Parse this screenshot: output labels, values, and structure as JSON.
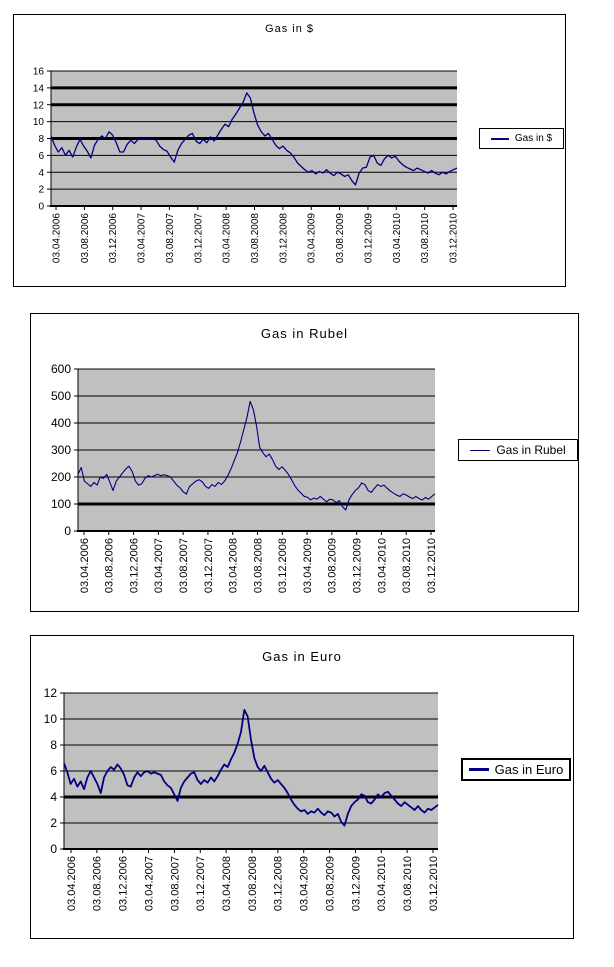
{
  "page": {
    "background": "#ffffff",
    "description_colors": {
      "plot_background": "#c0c0c0",
      "gridline": "#000000",
      "series_line": "#000080"
    }
  },
  "chart_data": [
    {
      "type": "line",
      "title": "Gas in $",
      "legend_label": "Gas in $",
      "legend_position": "right",
      "line_color": "#000080",
      "plot_bg": "#c0c0c0",
      "grid_color": "#000000",
      "grid": true,
      "ylim": [
        0,
        16
      ],
      "yticks": [
        0,
        2,
        4,
        6,
        8,
        10,
        12,
        14,
        16
      ],
      "thick_gridlines": [
        8,
        12,
        14
      ],
      "x_labels": [
        "03.04.2006",
        "03.08.2006",
        "03.12.2006",
        "03.04.2007",
        "03.08.2007",
        "03.12.2007",
        "03.04.2008",
        "03.08.2008",
        "03.12.2008",
        "03.04.2009",
        "03.08.2009",
        "03.12.2009",
        "03.04.2010",
        "03.08.2010",
        "03.12.2010"
      ],
      "values": [
        8.3,
        7.2,
        6.4,
        6.9,
        6.0,
        6.6,
        5.8,
        7.0,
        7.9,
        7.1,
        6.5,
        5.7,
        7.2,
        7.9,
        8.3,
        8.0,
        8.8,
        8.4,
        7.5,
        6.4,
        6.4,
        7.3,
        7.8,
        7.4,
        7.9,
        8.0,
        7.9,
        8.0,
        8.0,
        7.8,
        7.1,
        6.7,
        6.5,
        5.8,
        5.2,
        6.6,
        7.4,
        7.9,
        8.4,
        8.6,
        7.7,
        7.4,
        7.9,
        7.5,
        8.2,
        7.7,
        8.4,
        9.1,
        9.7,
        9.4,
        10.3,
        10.9,
        11.6,
        12.3,
        13.4,
        12.8,
        11.0,
        9.6,
        8.8,
        8.3,
        8.6,
        7.9,
        7.2,
        6.8,
        7.1,
        6.6,
        6.3,
        5.8,
        5.1,
        4.7,
        4.3,
        4.0,
        4.2,
        3.8,
        4.1,
        3.9,
        4.3,
        3.9,
        3.6,
        4.0,
        3.8,
        3.5,
        3.7,
        3.0,
        2.5,
        3.9,
        4.5,
        4.6,
        5.8,
        6.0,
        5.1,
        4.8,
        5.6,
        6.0,
        5.7,
        5.9,
        5.3,
        4.9,
        4.6,
        4.4,
        4.2,
        4.5,
        4.3,
        4.1,
        3.9,
        4.2,
        3.9,
        3.7,
        4.0,
        3.8,
        4.1,
        4.3,
        4.5
      ]
    },
    {
      "type": "line",
      "title": "Gas in Rubel",
      "legend_label": "Gas in Rubel",
      "legend_position": "right",
      "line_color": "#000080",
      "plot_bg": "#c0c0c0",
      "grid_color": "#000000",
      "grid": true,
      "ylim": [
        0,
        600
      ],
      "yticks": [
        0,
        100,
        200,
        300,
        400,
        500,
        600
      ],
      "thick_gridlines": [
        100
      ],
      "x_labels": [
        "03.04.2006",
        "03.08.2006",
        "03.12.2006",
        "03.04.2007",
        "03.08.2007",
        "03.12.2007",
        "03.04.2008",
        "03.08.2008",
        "03.12.2008",
        "03.04.2009",
        "03.08.2009",
        "03.12.2009",
        "03.04.2010",
        "03.08.2010",
        "03.12.2010"
      ],
      "values": [
        210,
        235,
        185,
        175,
        165,
        180,
        170,
        200,
        195,
        210,
        180,
        150,
        185,
        200,
        215,
        230,
        240,
        220,
        185,
        170,
        175,
        195,
        205,
        200,
        205,
        210,
        205,
        208,
        205,
        200,
        185,
        170,
        160,
        145,
        137,
        165,
        175,
        185,
        190,
        182,
        165,
        158,
        172,
        165,
        180,
        172,
        185,
        205,
        230,
        260,
        290,
        330,
        375,
        420,
        480,
        450,
        390,
        310,
        290,
        275,
        285,
        265,
        240,
        228,
        238,
        225,
        210,
        190,
        168,
        152,
        140,
        128,
        125,
        115,
        122,
        118,
        128,
        118,
        108,
        118,
        115,
        105,
        112,
        90,
        78,
        115,
        135,
        150,
        160,
        178,
        172,
        150,
        143,
        158,
        172,
        165,
        170,
        158,
        148,
        140,
        133,
        128,
        138,
        133,
        126,
        120,
        128,
        120,
        115,
        124,
        118,
        128,
        138
      ]
    },
    {
      "type": "line",
      "title": "Gas in Euro",
      "legend_label": "Gas in Euro",
      "legend_position": "right",
      "line_color": "#000080",
      "plot_bg": "#c0c0c0",
      "grid_color": "#000000",
      "grid": true,
      "ylim": [
        0,
        12
      ],
      "yticks": [
        0,
        2,
        4,
        6,
        8,
        10,
        12
      ],
      "thick_gridlines": [
        4
      ],
      "x_labels": [
        "03.04.2006",
        "03.08.2006",
        "03.12.2006",
        "03.04.2007",
        "03.08.2007",
        "03.12.2007",
        "03.04.2008",
        "03.08.2008",
        "03.12.2008",
        "03.04.2009",
        "03.08.2009",
        "03.12.2009",
        "03.04.2010",
        "03.08.2010",
        "03.12.2010"
      ],
      "values": [
        6.6,
        5.9,
        5.0,
        5.4,
        4.8,
        5.2,
        4.6,
        5.5,
        6.0,
        5.5,
        5.0,
        4.3,
        5.5,
        6.0,
        6.3,
        6.1,
        6.5,
        6.2,
        5.7,
        4.9,
        4.8,
        5.5,
        5.9,
        5.6,
        5.9,
        6.0,
        5.8,
        5.9,
        5.8,
        5.7,
        5.2,
        4.9,
        4.7,
        4.2,
        3.7,
        4.7,
        5.2,
        5.5,
        5.8,
        5.9,
        5.3,
        5.0,
        5.3,
        5.1,
        5.5,
        5.2,
        5.6,
        6.1,
        6.5,
        6.3,
        6.9,
        7.4,
        8.1,
        9.0,
        10.7,
        10.2,
        8.4,
        7.0,
        6.3,
        6.0,
        6.4,
        5.9,
        5.4,
        5.1,
        5.3,
        5.0,
        4.7,
        4.3,
        3.8,
        3.4,
        3.1,
        2.9,
        3.0,
        2.7,
        2.9,
        2.8,
        3.1,
        2.8,
        2.6,
        2.9,
        2.8,
        2.5,
        2.7,
        2.1,
        1.8,
        2.7,
        3.3,
        3.6,
        3.8,
        4.2,
        4.1,
        3.6,
        3.5,
        3.8,
        4.2,
        4.0,
        4.3,
        4.4,
        4.1,
        3.8,
        3.5,
        3.3,
        3.6,
        3.4,
        3.2,
        3.0,
        3.3,
        3.0,
        2.8,
        3.1,
        3.0,
        3.2,
        3.4
      ]
    }
  ]
}
